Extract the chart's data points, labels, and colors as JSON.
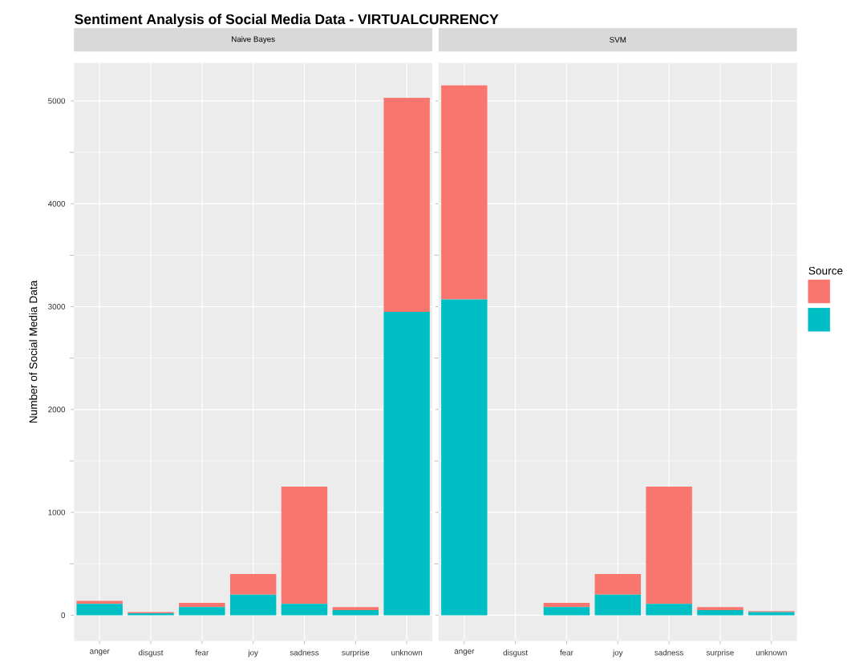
{
  "chart_data": [
    {
      "type": "bar",
      "title": "Sentiment Analysis of Social Media Data - VIRTUALCURRENCY",
      "subtitle": "Naive Bayes",
      "ylabel": "Number of Social Media Data",
      "stacked": true,
      "grid": true,
      "categories": [
        "anger",
        "disgust",
        "fear",
        "joy",
        "sadness",
        "surprise",
        "unknown"
      ],
      "series": [
        {
          "color": "#00bfc4",
          "values": [
            110,
            20,
            80,
            200,
            110,
            50,
            2950
          ]
        },
        {
          "color": "#f8766d",
          "values": [
            30,
            10,
            40,
            200,
            1140,
            30,
            2080
          ]
        }
      ],
      "ylim": [
        -250,
        5370
      ],
      "yticks": [
        0,
        1000,
        2000,
        3000,
        4000,
        5000
      ]
    },
    {
      "type": "bar",
      "subtitle": "SVM",
      "stacked": true,
      "grid": true,
      "legend_title": "Source",
      "tick_labels": "x",
      "categories": [
        "anger",
        "disgust",
        "fear",
        "joy",
        "sadness",
        "surprise",
        "unknown"
      ],
      "series": [
        {
          "color": "#00bfc4",
          "values": [
            3070,
            0,
            80,
            200,
            110,
            50,
            30
          ]
        },
        {
          "color": "#f8766d",
          "values": [
            2080,
            0,
            40,
            200,
            1140,
            30,
            10
          ]
        }
      ],
      "ylim": [
        -250,
        5370
      ],
      "yticks": [
        0,
        1000,
        2000,
        3000,
        4000,
        5000
      ]
    }
  ]
}
